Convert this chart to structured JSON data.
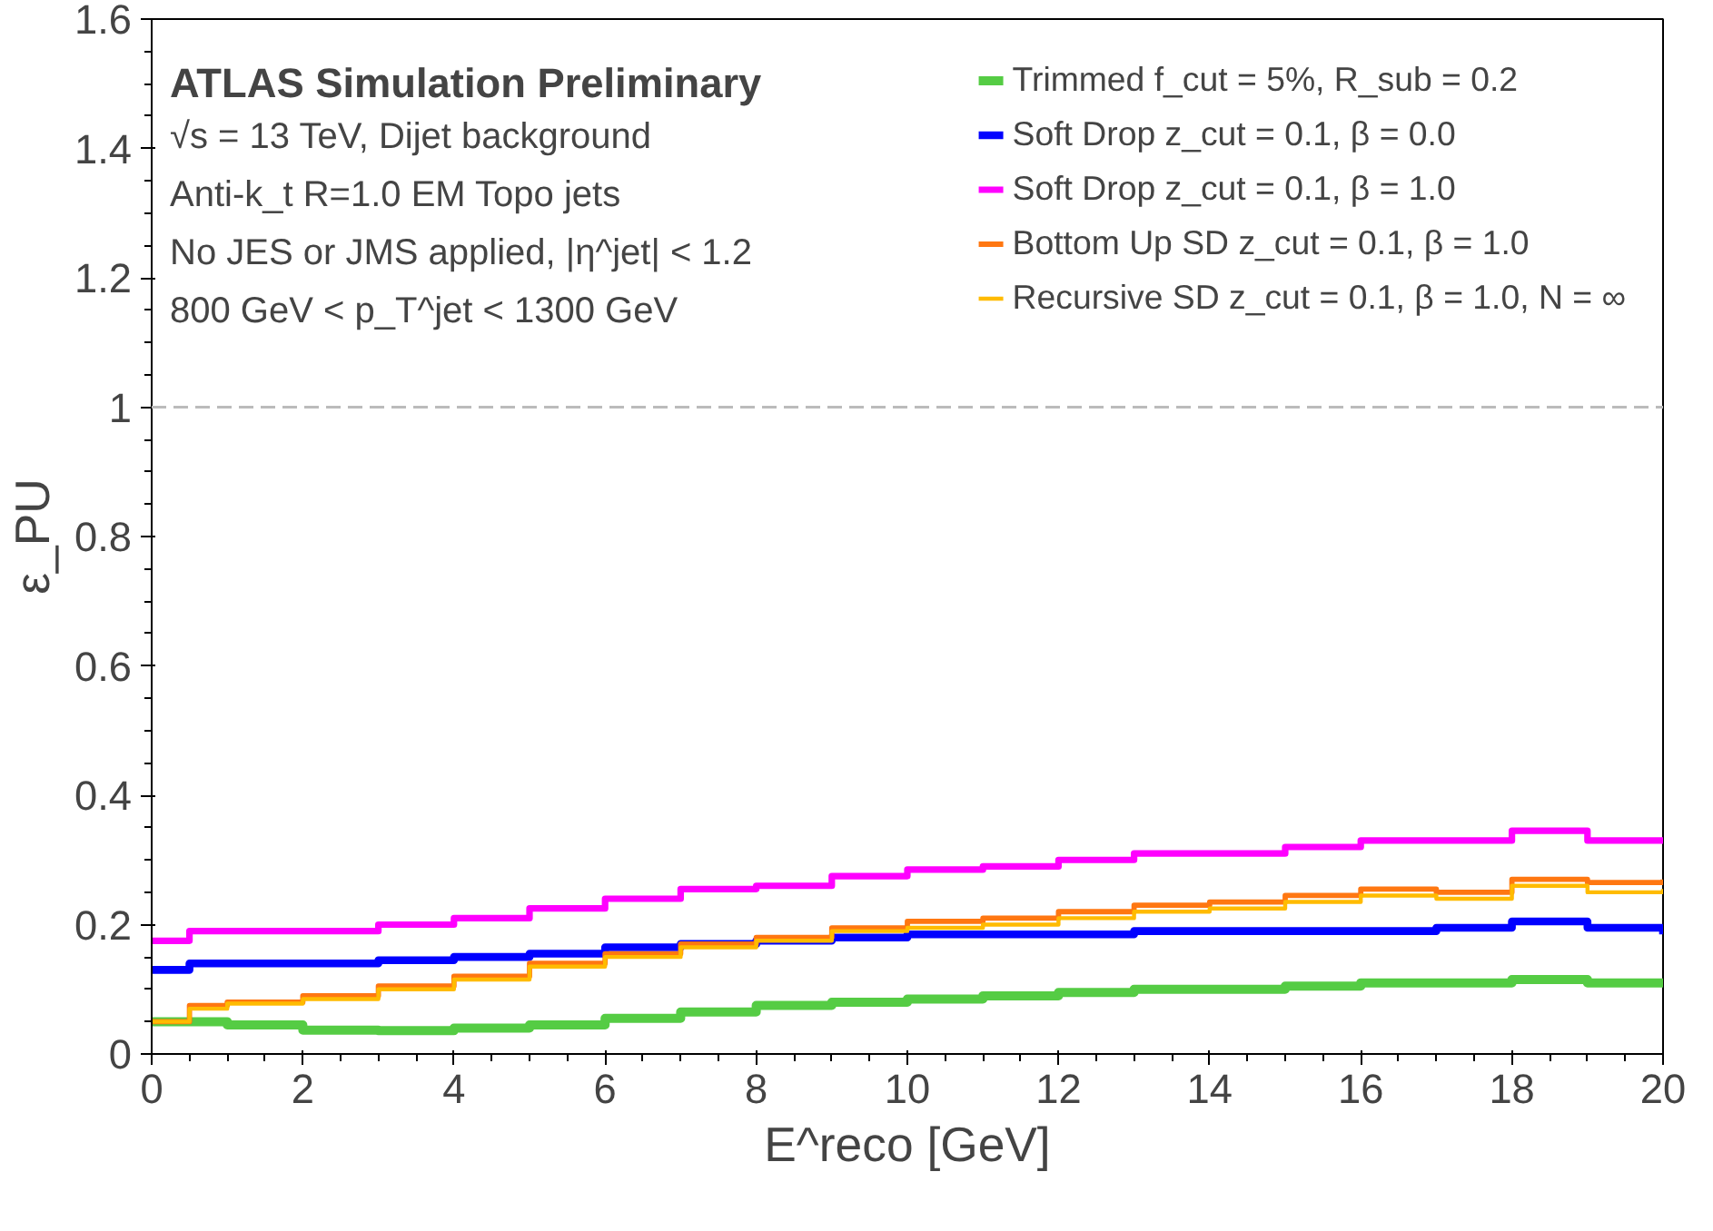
{
  "chart_data": {
    "type": "step",
    "xlabel": "E^reco [GeV]",
    "ylabel": "ε_PU",
    "x": [
      0,
      0.5,
      1,
      2,
      3,
      4,
      5,
      6,
      7,
      8,
      9,
      10,
      11,
      12,
      13,
      14,
      15,
      16,
      17,
      18,
      19,
      20
    ],
    "series": [
      {
        "name": "Trimmed f_cut = 5%, R_sub = 0.2",
        "color": "#55cc44",
        "values": [
          0.05,
          0.05,
          0.045,
          0.037,
          0.036,
          0.04,
          0.045,
          0.055,
          0.065,
          0.075,
          0.08,
          0.085,
          0.09,
          0.095,
          0.1,
          0.1,
          0.105,
          0.11,
          0.11,
          0.115,
          0.11,
          0.115
        ]
      },
      {
        "name": "Soft Drop z_cut = 0.1, β = 0.0",
        "color": "#0000ff",
        "values": [
          0.13,
          0.14,
          0.14,
          0.14,
          0.145,
          0.15,
          0.155,
          0.165,
          0.17,
          0.175,
          0.18,
          0.185,
          0.185,
          0.185,
          0.19,
          0.19,
          0.19,
          0.19,
          0.195,
          0.205,
          0.195,
          0.185
        ]
      },
      {
        "name": "Soft Drop z_cut = 0.1, β = 1.0",
        "color": "#ff00ff",
        "values": [
          0.175,
          0.19,
          0.19,
          0.19,
          0.2,
          0.21,
          0.225,
          0.24,
          0.255,
          0.26,
          0.275,
          0.285,
          0.29,
          0.3,
          0.31,
          0.31,
          0.32,
          0.33,
          0.33,
          0.345,
          0.33,
          0.335
        ]
      },
      {
        "name": "Bottom Up SD z_cut = 0.1, β = 1.0",
        "color": "#ff7711",
        "values": [
          0.05,
          0.075,
          0.08,
          0.09,
          0.105,
          0.12,
          0.14,
          0.155,
          0.17,
          0.18,
          0.195,
          0.205,
          0.21,
          0.22,
          0.23,
          0.235,
          0.245,
          0.255,
          0.25,
          0.27,
          0.265,
          0.27
        ]
      },
      {
        "name": "Recursive SD z_cut = 0.1, β = 1.0, N = ∞",
        "color": "#ffbb00",
        "values": [
          0.05,
          0.07,
          0.078,
          0.085,
          0.1,
          0.115,
          0.135,
          0.15,
          0.165,
          0.175,
          0.19,
          0.195,
          0.2,
          0.21,
          0.22,
          0.225,
          0.235,
          0.245,
          0.24,
          0.26,
          0.25,
          0.255
        ]
      }
    ],
    "xlim": [
      0,
      20
    ],
    "xticks": [
      0,
      2,
      4,
      6,
      8,
      10,
      12,
      14,
      16,
      18,
      20
    ],
    "ylim": [
      0,
      1.6
    ],
    "yticks": [
      0,
      0.2,
      0.4,
      0.6,
      0.8,
      1,
      1.2,
      1.4,
      1.6
    ],
    "ref_lines": [
      {
        "axis": "y",
        "value": 1,
        "color": "#bbbbbb",
        "line_style": "dashed"
      }
    ],
    "annotations": [
      "ATLAS Simulation Preliminary",
      "√s = 13 TeV, Dijet background",
      "Anti-k_t R=1.0 EM Topo jets",
      "No JES or JMS applied, |η^jet| < 1.2",
      "800 GeV < p_T^jet < 1300 GeV"
    ],
    "legend": "top right",
    "grid": false
  }
}
